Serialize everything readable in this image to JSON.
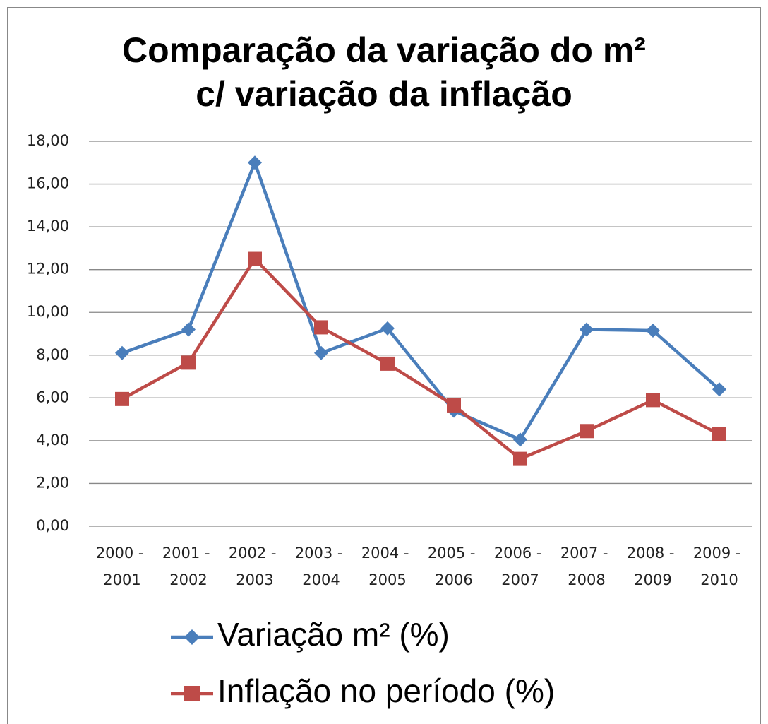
{
  "chart_data": {
    "type": "line",
    "title": [
      "Comparação da variação do m²",
      "c/ variação da inflação"
    ],
    "categories": [
      "2000 - 2001",
      "2001 - 2002",
      "2002 - 2003",
      "2003 - 2004",
      "2004 - 2005",
      "2005 - 2006",
      "2006 - 2007",
      "2007 - 2008",
      "2008 - 2009",
      "2009 - 2010"
    ],
    "series": [
      {
        "name": "Variação m² (%)",
        "color": "#4a7ebb",
        "marker": "diamond",
        "values": [
          8.1,
          9.2,
          17.0,
          8.1,
          9.25,
          5.4,
          4.05,
          9.2,
          9.15,
          6.4
        ]
      },
      {
        "name": "Inflação no período (%)",
        "color": "#be4b48",
        "marker": "square",
        "values": [
          5.95,
          7.65,
          12.5,
          9.3,
          7.6,
          5.65,
          3.15,
          4.45,
          5.9,
          4.3
        ]
      }
    ],
    "ylim": [
      0,
      18
    ],
    "yticks": [
      {
        "value": 0,
        "label": "0,00"
      },
      {
        "value": 2,
        "label": "2,00"
      },
      {
        "value": 4,
        "label": "4,00"
      },
      {
        "value": 6,
        "label": "6,00"
      },
      {
        "value": 8,
        "label": "8,00"
      },
      {
        "value": 10,
        "label": "10,00"
      },
      {
        "value": 12,
        "label": "12,00"
      },
      {
        "value": 14,
        "label": "14,00"
      },
      {
        "value": 16,
        "label": "16,00"
      },
      {
        "value": 18,
        "label": "18,00"
      }
    ],
    "grid": true,
    "legend": "bottom"
  }
}
